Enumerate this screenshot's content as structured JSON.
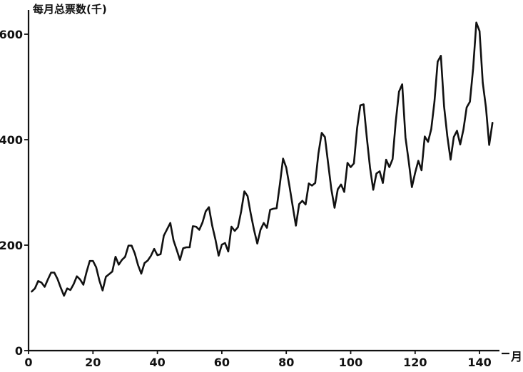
{
  "chart_data": {
    "type": "line",
    "title": "",
    "ylabel": "每月总票数(千)",
    "xlabel": "月",
    "xlim": [
      0,
      144
    ],
    "ylim": [
      0,
      600
    ],
    "xticks": [
      0,
      20,
      40,
      60,
      80,
      100,
      120,
      140
    ],
    "yticks": [
      0,
      200,
      400,
      600
    ],
    "grid": false,
    "series": [
      {
        "x": [
          1,
          2,
          3,
          4,
          5,
          6,
          7,
          8,
          9,
          10,
          11,
          12,
          13,
          14,
          15,
          16,
          17,
          18,
          19,
          20,
          21,
          22,
          23,
          24,
          25,
          26,
          27,
          28,
          29,
          30,
          31,
          32,
          33,
          34,
          35,
          36,
          37,
          38,
          39,
          40,
          41,
          42,
          43,
          44,
          45,
          46,
          47,
          48,
          49,
          50,
          51,
          52,
          53,
          54,
          55,
          56,
          57,
          58,
          59,
          60,
          61,
          62,
          63,
          64,
          65,
          66,
          67,
          68,
          69,
          70,
          71,
          72,
          73,
          74,
          75,
          76,
          77,
          78,
          79,
          80,
          81,
          82,
          83,
          84,
          85,
          86,
          87,
          88,
          89,
          90,
          91,
          92,
          93,
          94,
          95,
          96,
          97,
          98,
          99,
          100,
          101,
          102,
          103,
          104,
          105,
          106,
          107,
          108,
          109,
          110,
          111,
          112,
          113,
          114,
          115,
          116,
          117,
          118,
          119,
          120,
          121,
          122,
          123,
          124,
          125,
          126,
          127,
          128,
          129,
          130,
          131,
          132,
          133,
          134,
          135,
          136,
          137,
          138,
          139,
          140,
          141,
          142,
          143,
          144
        ],
        "values": [
          112,
          118,
          132,
          129,
          121,
          135,
          148,
          148,
          136,
          119,
          104,
          118,
          115,
          126,
          141,
          135,
          125,
          149,
          170,
          170,
          158,
          133,
          114,
          140,
          145,
          150,
          178,
          163,
          172,
          178,
          199,
          199,
          184,
          162,
          146,
          166,
          171,
          180,
          193,
          181,
          183,
          218,
          230,
          242,
          209,
          191,
          172,
          194,
          196,
          196,
          236,
          235,
          229,
          243,
          264,
          272,
          237,
          211,
          180,
          201,
          204,
          188,
          235,
          227,
          234,
          264,
          302,
          293,
          259,
          229,
          203,
          229,
          242,
          233,
          267,
          269,
          270,
          315,
          364,
          347,
          312,
          274,
          237,
          278,
          284,
          277,
          317,
          313,
          318,
          374,
          413,
          405,
          355,
          306,
          271,
          306,
          315,
          301,
          356,
          348,
          355,
          422,
          465,
          467,
          404,
          347,
          305,
          336,
          340,
          318,
          362,
          348,
          363,
          435,
          491,
          505,
          404,
          359,
          310,
          337,
          360,
          342,
          406,
          396,
          420,
          472,
          548,
          559,
          463,
          407,
          362,
          405,
          417,
          391,
          419,
          461,
          472,
          535,
          622,
          606,
          508,
          461,
          390,
          432
        ]
      }
    ]
  }
}
